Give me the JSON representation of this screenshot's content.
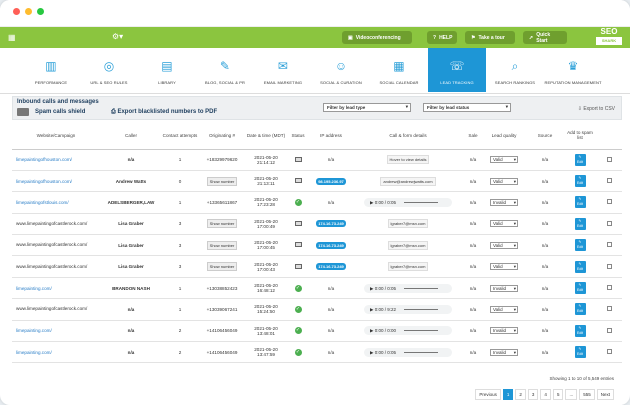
{
  "topbar": {
    "buttons": [
      {
        "label": "Videoconferencing",
        "icon": "video-icon"
      },
      {
        "label": "HELP",
        "icon": "help-icon"
      },
      {
        "label": "Take a tour",
        "icon": "flag-icon"
      },
      {
        "label": "Quick Start",
        "icon": "rocket-icon"
      }
    ],
    "logo_top": "SEO",
    "logo_bottom": "SHARK"
  },
  "nav": [
    {
      "label": "Performance",
      "icon": "chart-icon"
    },
    {
      "label": "URL & SEO Rules",
      "icon": "target-icon"
    },
    {
      "label": "Library",
      "icon": "library-icon"
    },
    {
      "label": "Blog, Social & PR",
      "icon": "blog-icon"
    },
    {
      "label": "Email Marketing",
      "icon": "email-icon"
    },
    {
      "label": "Social & Curation",
      "icon": "social-icon"
    },
    {
      "label": "Social Calendar",
      "icon": "calendar-icon"
    },
    {
      "label": "Lead Tracking",
      "icon": "lead-icon",
      "active": true
    },
    {
      "label": "Search Rankings",
      "icon": "rank-icon"
    },
    {
      "label": "Reputation Management",
      "icon": "reputation-icon"
    }
  ],
  "panel": {
    "title": "Inbound calls and messages",
    "spam_shield": "Spam calls shield",
    "export_pdf": "Export blacklisted numbers to PDF",
    "filter_type": "Filter by lead type",
    "filter_status": "Filter by lead status",
    "export_csv": "Export to CSV"
  },
  "columns": [
    "Website/Campaign",
    "Caller",
    "Contact attempts",
    "Originating #",
    "Date & time (MDT)",
    "Status",
    "IP address",
    "Call & form details",
    "Sale",
    "Lead quality",
    "Source",
    "Add to spam list"
  ],
  "rows": [
    {
      "site": "limepaintingofhouston.com/",
      "caller": "n/a",
      "attempts": "1",
      "orig": "+18329979620",
      "date": "2021-05-20",
      "time": "21:14:12",
      "status": "card",
      "ip": "n/a",
      "detail": "Hover to view details",
      "dtype": "mail",
      "sale": "n/a",
      "quality": "Valid",
      "source": "n/a"
    },
    {
      "site": "limepaintingofhouston.com/",
      "caller": "Andrew Watts",
      "attempts": "0",
      "orig": "Show number",
      "date": "2021-05-20",
      "time": "21:13:11",
      "status": "card",
      "ip": "98.195.236.97",
      "detail": "andrew@andrewjwatts.com",
      "dtype": "mail",
      "sale": "n/a",
      "quality": "Valid",
      "source": "n/a"
    },
    {
      "site": "limepaintingofstlouis.com/",
      "caller": "ADELSBERGER,LAW",
      "attempts": "1",
      "orig": "+13365611867",
      "date": "2021-05-20",
      "time": "17:23:28",
      "status": "ok",
      "ip": "n/a",
      "detail": "0:00 / 0:05",
      "dtype": "audio",
      "sale": "n/a",
      "quality": "Invalid",
      "source": "n/a"
    },
    {
      "site": "www.limepaintingofcastlerock.com/",
      "caller": "Lisa Graber",
      "attempts": "3",
      "orig": "Show number",
      "date": "2021-05-20",
      "time": "17:00:49",
      "status": "card",
      "ip": "174.16.73.249",
      "detail": "lgraber7@msn.com",
      "dtype": "mail",
      "sale": "n/a",
      "quality": "Valid",
      "source": "n/a"
    },
    {
      "site": "www.limepaintingofcastlerock.com/",
      "caller": "Lisa Graber",
      "attempts": "3",
      "orig": "Show number",
      "date": "2021-05-20",
      "time": "17:00:45",
      "status": "card",
      "ip": "174.16.73.249",
      "detail": "lgraber7@msn.com",
      "dtype": "mail",
      "sale": "n/a",
      "quality": "Valid",
      "source": "n/a"
    },
    {
      "site": "www.limepaintingofcastlerock.com/",
      "caller": "Lisa Graber",
      "attempts": "3",
      "orig": "Show number",
      "date": "2021-05-20",
      "time": "17:00:43",
      "status": "card",
      "ip": "174.16.73.249",
      "detail": "lgraber7@msn.com",
      "dtype": "mail",
      "sale": "n/a",
      "quality": "Valid",
      "source": "n/a"
    },
    {
      "site": "limepainting.com/",
      "caller": "BRANDON NASH",
      "attempts": "1",
      "orig": "+13038852423",
      "date": "2021-05-20",
      "time": "16:48:12",
      "status": "ok",
      "ip": "n/a",
      "detail": "0:00 / 0:05",
      "dtype": "audio",
      "sale": "n/a",
      "quality": "Invalid",
      "source": "n/a"
    },
    {
      "site": "www.limepaintingofcastlerock.com/",
      "caller": "n/a",
      "attempts": "1",
      "orig": "+13039067241",
      "date": "2021-05-20",
      "time": "15:24:50",
      "status": "ok",
      "ip": "n/a",
      "detail": "0:00 / 9:22",
      "dtype": "audio",
      "sale": "n/a",
      "quality": "Valid",
      "source": "n/a"
    },
    {
      "site": "limepainting.com/",
      "caller": "n/a",
      "attempts": "2",
      "orig": "+14106456049",
      "date": "2021-05-20",
      "time": "13:48:01",
      "status": "ok",
      "ip": "n/a",
      "detail": "0:00 / 0:00",
      "dtype": "audio",
      "sale": "n/a",
      "quality": "Invalid",
      "source": "n/a"
    },
    {
      "site": "limepainting.com/",
      "caller": "n/a",
      "attempts": "2",
      "orig": "+14106456049",
      "date": "2021-05-20",
      "time": "13:47:59",
      "status": "ok",
      "ip": "n/a",
      "detail": "0:00 / 0:05",
      "dtype": "audio",
      "sale": "n/a",
      "quality": "Invalid",
      "source": "n/a"
    }
  ],
  "edit_label": "Edit",
  "footer": "Showing 1 to 10 of 5,549 entries",
  "pager": [
    "Previous",
    "1",
    "2",
    "3",
    "4",
    "5",
    "...",
    "555",
    "Next"
  ]
}
